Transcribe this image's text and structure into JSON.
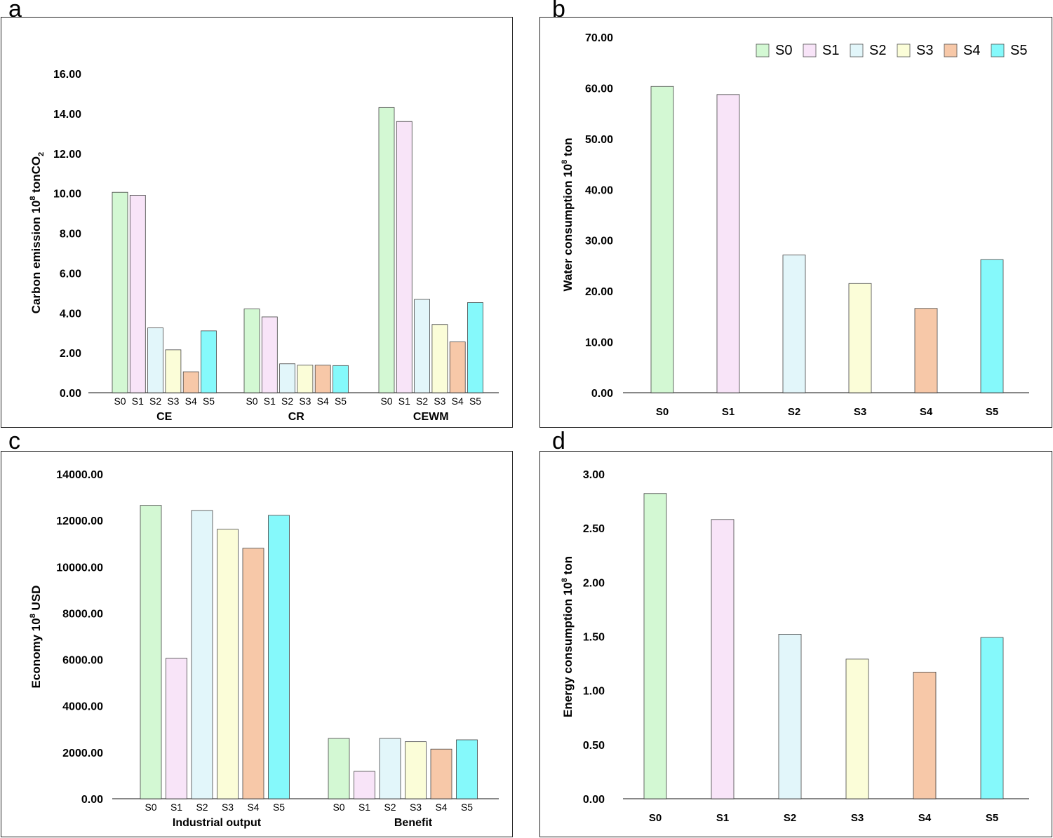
{
  "panels": {
    "a": {
      "letter": "a"
    },
    "b": {
      "letter": "b"
    },
    "c": {
      "letter": "c"
    },
    "d": {
      "letter": "d"
    }
  },
  "colors": {
    "S0": "#d3f8d3",
    "S1": "#f8e4f8",
    "S2": "#e2f6fa",
    "S3": "#fbfdd8",
    "S4": "#f7c8a8",
    "S5": "#85f9fb"
  },
  "legend": [
    "S0",
    "S1",
    "S2",
    "S3",
    "S4",
    "S5"
  ],
  "chart_data": [
    {
      "panel": "a",
      "type": "bar",
      "groups": [
        "CE",
        "CR",
        "CEWM"
      ],
      "categories": [
        "S0",
        "S1",
        "S2",
        "S3",
        "S4",
        "S5"
      ],
      "values": [
        [
          10.05,
          9.9,
          3.25,
          2.15,
          1.05,
          3.1
        ],
        [
          4.2,
          3.8,
          1.45,
          1.38,
          1.38,
          1.36
        ],
        [
          14.3,
          13.6,
          4.68,
          3.42,
          2.55,
          4.52
        ]
      ],
      "ylabel_main": "Carbon emission 10",
      "ylabel_sup": "8",
      "ylabel_rest": " tonCO",
      "ylabel_sub": "2",
      "yticks": [
        "0.00",
        "2.00",
        "4.00",
        "6.00",
        "8.00",
        "10.00",
        "12.00",
        "14.00",
        "16.00"
      ],
      "ylim": [
        0,
        16
      ]
    },
    {
      "panel": "b",
      "type": "bar",
      "categories": [
        "S0",
        "S1",
        "S2",
        "S3",
        "S4",
        "S5"
      ],
      "values": [
        60.3,
        58.7,
        27.1,
        21.5,
        16.6,
        26.2
      ],
      "ylabel_main": "Water consumption  10",
      "ylabel_sup": "8",
      "ylabel_rest": " ton",
      "yticks": [
        "0.00",
        "10.00",
        "20.00",
        "30.00",
        "40.00",
        "50.00",
        "60.00",
        "70.00"
      ],
      "ylim": [
        0,
        70
      ]
    },
    {
      "panel": "c",
      "type": "bar",
      "groups": [
        "Industrial output",
        "Benefit"
      ],
      "categories": [
        "S0",
        "S1",
        "S2",
        "S3",
        "S4",
        "S5"
      ],
      "values": [
        [
          12650,
          6060,
          12430,
          11620,
          10800,
          12220
        ],
        [
          2600,
          1180,
          2600,
          2460,
          2140,
          2540
        ]
      ],
      "ylabel_main": "Economy 10",
      "ylabel_sup": "8",
      "ylabel_rest": " USD",
      "yticks": [
        "0.00",
        "2000.00",
        "4000.00",
        "6000.00",
        "8000.00",
        "10000.00",
        "12000.00",
        "14000.00"
      ],
      "ylim": [
        0,
        14000
      ]
    },
    {
      "panel": "d",
      "type": "bar",
      "categories": [
        "S0",
        "S1",
        "S2",
        "S3",
        "S4",
        "S5"
      ],
      "values": [
        2.82,
        2.58,
        1.52,
        1.29,
        1.17,
        1.49
      ],
      "ylabel_main": "Energy consumption 10",
      "ylabel_sup": "8",
      "ylabel_rest": " ton",
      "yticks": [
        "0.00",
        "0.50",
        "1.00",
        "1.50",
        "2.00",
        "2.50",
        "3.00"
      ],
      "ylim": [
        0,
        3
      ]
    }
  ]
}
